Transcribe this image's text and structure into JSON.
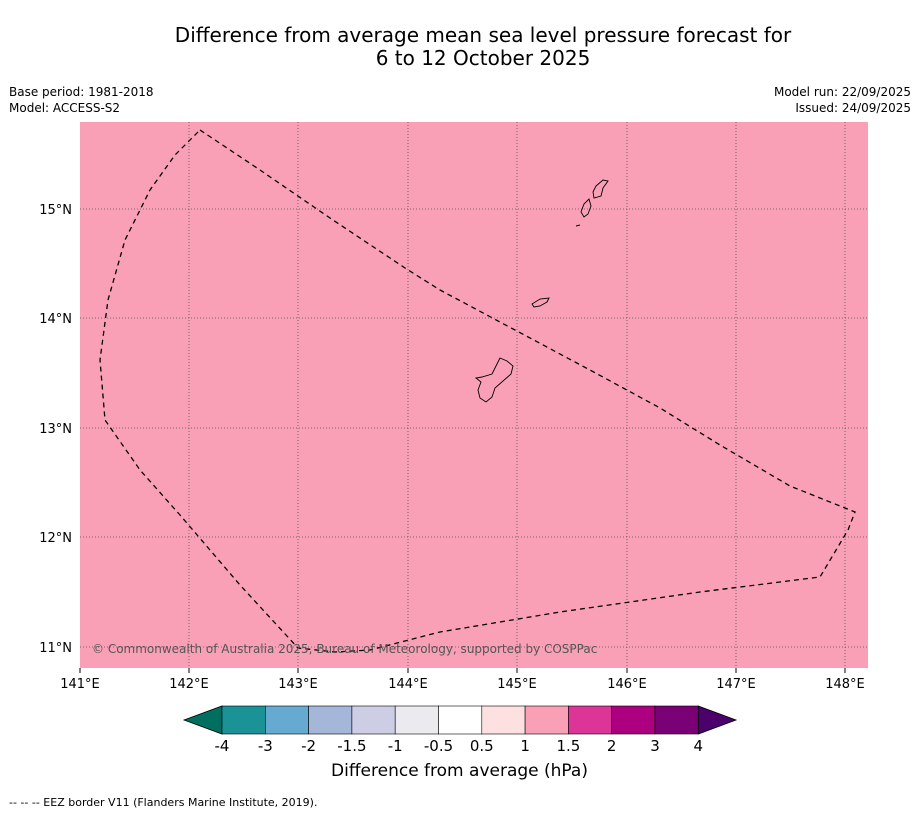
{
  "header": {
    "title_line1": "Difference from average mean sea level pressure forecast for",
    "title_line2": "6 to 12 October 2025",
    "base_period": "Base period: 1981-2018",
    "model": "Model: ACCESS-S2",
    "model_run": "Model run: 22/09/2025",
    "issued": "Issued: 24/09/2025"
  },
  "map": {
    "fill_color": "#f9a0b7",
    "lat_labels": [
      "15°N",
      "14°N",
      "13°N",
      "12°N",
      "11°N"
    ],
    "lon_labels": [
      "141°E",
      "142°E",
      "143°E",
      "144°E",
      "145°E",
      "146°E",
      "147°E",
      "148°E"
    ],
    "copyright": "© Commonwealth of Australia 2025, Bureau of Meteorology, supported by COSPPac"
  },
  "colorbar": {
    "title": "Difference from average (hPa)",
    "ticks": [
      "-4",
      "-3",
      "-2",
      "-1.5",
      "-1",
      "-0.5",
      "0.5",
      "1",
      "1.5",
      "2",
      "3",
      "4"
    ],
    "colors": [
      "#006f5f",
      "#1b9296",
      "#67aad1",
      "#a5b7d9",
      "#cdcde6",
      "#ebeaef",
      "#ffffff",
      "#fde0e0",
      "#f9a0b7",
      "#dc3597",
      "#ac0081",
      "#7a0076",
      "#4b006b"
    ]
  },
  "footer": {
    "legend": "--  --  -- EEZ border V11 (Flanders Marine Institute, 2019)."
  }
}
